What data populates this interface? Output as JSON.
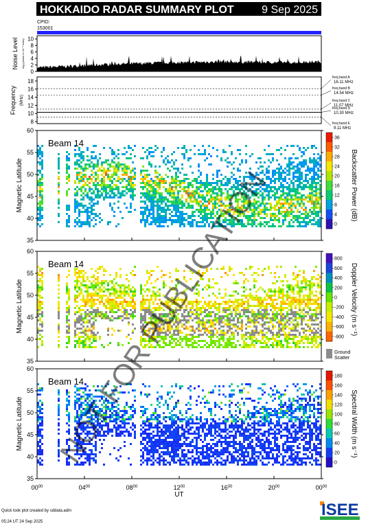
{
  "header": {
    "title": "HOKKAIDO RADAR SUMMARY PLOT",
    "date": "9 Sep 2025",
    "cpid_label": "CPID:",
    "cpid_value": "153001"
  },
  "noise_panel": {
    "ylabel": "Noise Level",
    "ylabel_sub": "log₁₀(noise in 10⁻⁶ units)",
    "yticks": [
      "0",
      "2",
      "4",
      "6",
      "8",
      "10"
    ]
  },
  "freq_panel": {
    "ylabel": "Frequency",
    "ylabel_sub": "(MHz)",
    "yticks": [
      "8",
      "10",
      "12",
      "14",
      "16",
      "18"
    ],
    "bands": [
      {
        "label": "freq band A",
        "value": "16.11 MHz"
      },
      {
        "label": "freq band B",
        "value": "14.54 MHz"
      },
      {
        "label": "freq band C",
        "value": "11.07 MHz"
      },
      {
        "label": "freq band D",
        "value": "10.30 MHz"
      },
      {
        "label": "freq band E",
        "value": "9.11 MHz"
      }
    ]
  },
  "panels": [
    {
      "beam": "Beam 14",
      "ylabel": "Magnetic Latitude",
      "cbar_label": "Backscatter Power (dB)",
      "cbar_ticks": [
        "0",
        "4",
        "8",
        "12",
        "16",
        "20",
        "24",
        "28",
        "32",
        "36"
      ]
    },
    {
      "beam": "Beam 14",
      "ylabel": "Magnetic Latitude",
      "cbar_label": "Doppler Velocity (m s⁻¹)",
      "cbar_ticks": [
        "-800",
        "-600",
        "-400",
        "-200",
        "0",
        "200",
        "400",
        "600",
        "800"
      ],
      "ground_label": "Ground",
      "scatter_label": "Scatter"
    },
    {
      "beam": "Beam 14",
      "ylabel": "Magnetic Latitude",
      "cbar_label": "Spectral Width (m s⁻¹)",
      "cbar_ticks": [
        "0",
        "20",
        "40",
        "60",
        "80",
        "100",
        "120",
        "140",
        "160",
        "180"
      ]
    }
  ],
  "lat_ticks": [
    "35",
    "40",
    "45",
    "50",
    "55",
    "60"
  ],
  "x_axis": {
    "label": "UT",
    "ticks": [
      {
        "h": "00",
        "m": "00"
      },
      {
        "h": "04",
        "m": "00"
      },
      {
        "h": "08",
        "m": "00"
      },
      {
        "h": "12",
        "m": "00"
      },
      {
        "h": "16",
        "m": "00"
      },
      {
        "h": "20",
        "m": "00"
      },
      {
        "h": "00",
        "m": "00"
      }
    ]
  },
  "footer": {
    "line1": "Quick look plot created by sddata.adm",
    "line2": "05:24 UT 24 Sep 2025",
    "logo": "ISEE"
  },
  "watermark": "NOT FOR PUBLICATION",
  "chart_data": [
    {
      "type": "area",
      "ylabel": "Noise Level",
      "ylim": [
        0,
        11
      ],
      "x_units": "UT hours",
      "xlim": [
        0,
        24
      ],
      "x": [
        0,
        2,
        4,
        6,
        8,
        10,
        12,
        14,
        16,
        18,
        20,
        22,
        24
      ],
      "values": [
        1.0,
        1.3,
        1.6,
        2.0,
        2.2,
        2.4,
        2.6,
        2.7,
        2.8,
        2.7,
        2.6,
        2.6,
        2.8
      ]
    },
    {
      "type": "line",
      "ylabel": "Frequency",
      "ylim": [
        7.5,
        19
      ],
      "bands_mhz": [
        16.11,
        14.54,
        11.07,
        10.3,
        9.11
      ]
    },
    {
      "type": "heatmap",
      "quantity": "Backscatter Power (dB)",
      "x_units": "UT hours",
      "xlim": [
        0,
        24
      ],
      "ylim": [
        35,
        60
      ],
      "range": [
        0,
        38
      ]
    },
    {
      "type": "heatmap",
      "quantity": "Doppler Velocity (m s-1)",
      "x_units": "UT hours",
      "xlim": [
        0,
        24
      ],
      "ylim": [
        35,
        60
      ],
      "range": [
        -900,
        900
      ]
    },
    {
      "type": "heatmap",
      "quantity": "Spectral Width (m s-1)",
      "x_units": "UT hours",
      "xlim": [
        0,
        24
      ],
      "ylim": [
        35,
        60
      ],
      "range": [
        0,
        190
      ]
    }
  ]
}
